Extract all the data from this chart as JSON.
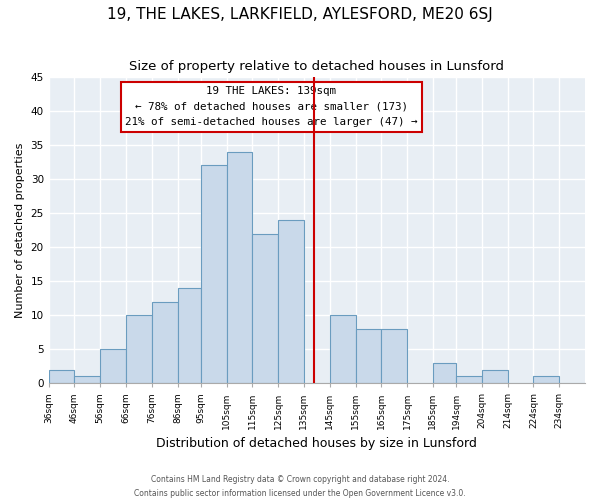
{
  "title": "19, THE LAKES, LARKFIELD, AYLESFORD, ME20 6SJ",
  "subtitle": "Size of property relative to detached houses in Lunsford",
  "xlabel": "Distribution of detached houses by size in Lunsford",
  "ylabel": "Number of detached properties",
  "footer_line1": "Contains HM Land Registry data © Crown copyright and database right 2024.",
  "footer_line2": "Contains public sector information licensed under the Open Government Licence v3.0.",
  "bin_labels": [
    "36sqm",
    "46sqm",
    "56sqm",
    "66sqm",
    "76sqm",
    "86sqm",
    "95sqm",
    "105sqm",
    "115sqm",
    "125sqm",
    "135sqm",
    "145sqm",
    "155sqm",
    "165sqm",
    "175sqm",
    "185sqm",
    "194sqm",
    "204sqm",
    "214sqm",
    "224sqm",
    "234sqm"
  ],
  "bin_edges": [
    36,
    46,
    56,
    66,
    76,
    86,
    95,
    105,
    115,
    125,
    135,
    145,
    155,
    165,
    175,
    185,
    194,
    204,
    214,
    224,
    234,
    244
  ],
  "counts": [
    2,
    1,
    5,
    10,
    12,
    14,
    32,
    34,
    22,
    24,
    0,
    10,
    8,
    8,
    0,
    3,
    1,
    2,
    0,
    1,
    0
  ],
  "bar_color": "#c9d9ea",
  "bar_edge_color": "#6a9cbf",
  "vline_x": 139,
  "vline_color": "#cc0000",
  "annotation_box_text": "19 THE LAKES: 139sqm\n← 78% of detached houses are smaller (173)\n21% of semi-detached houses are larger (47) →",
  "ylim": [
    0,
    45
  ],
  "yticks": [
    0,
    5,
    10,
    15,
    20,
    25,
    30,
    35,
    40,
    45
  ],
  "page_bg": "#ffffff",
  "plot_bg": "#e8eef4",
  "grid_color": "#ffffff",
  "title_fontsize": 11,
  "subtitle_fontsize": 9.5,
  "ylabel_fontsize": 8,
  "xlabel_fontsize": 9
}
